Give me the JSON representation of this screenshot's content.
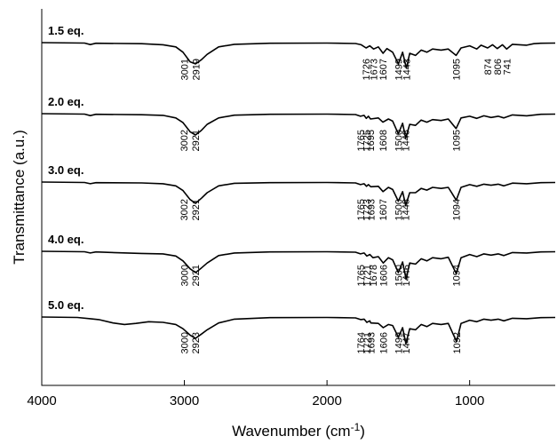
{
  "chart_data": {
    "type": "line",
    "title": "",
    "xlabel": "Wavenumber (cm",
    "xlabel_sup": "-1",
    "xlabel_end": ")",
    "ylabel": "Transmittance (a.u.)",
    "xlim": [
      4000,
      400
    ],
    "x_reversed": true,
    "xticks": [
      4000,
      3000,
      2000,
      1000
    ],
    "xtick_labels": [
      "4000",
      "3000",
      "2000",
      "1000"
    ],
    "yticks_shown": false,
    "grid": false,
    "legend": "none",
    "series": [
      {
        "name": "1.5 eq.",
        "peaks": [
          "3001",
          "2919",
          "1726",
          "1673",
          "1607",
          "1499",
          "1443",
          "1095",
          "874",
          "806",
          "741"
        ],
        "spectrum": [
          [
            4000,
            0
          ],
          [
            3700,
            0.02
          ],
          [
            3660,
            0.09
          ],
          [
            3620,
            0.03
          ],
          [
            3300,
            0.05
          ],
          [
            3150,
            0.1
          ],
          [
            3060,
            0.2
          ],
          [
            3010,
            0.45
          ],
          [
            2960,
            0.9
          ],
          [
            2922,
            1.0
          ],
          [
            2880,
            0.8
          ],
          [
            2840,
            0.55
          ],
          [
            2760,
            0.2
          ],
          [
            2650,
            0.08
          ],
          [
            2400,
            0.03
          ],
          [
            2000,
            0.02
          ],
          [
            1800,
            0.04
          ],
          [
            1760,
            0.1
          ],
          [
            1726,
            0.25
          ],
          [
            1700,
            0.15
          ],
          [
            1673,
            0.3
          ],
          [
            1640,
            0.2
          ],
          [
            1607,
            0.5
          ],
          [
            1580,
            0.28
          ],
          [
            1540,
            0.45
          ],
          [
            1499,
            1.0
          ],
          [
            1470,
            0.45
          ],
          [
            1443,
            1.2
          ],
          [
            1420,
            0.5
          ],
          [
            1380,
            0.6
          ],
          [
            1340,
            0.35
          ],
          [
            1300,
            0.45
          ],
          [
            1260,
            0.3
          ],
          [
            1200,
            0.35
          ],
          [
            1150,
            0.3
          ],
          [
            1095,
            0.6
          ],
          [
            1060,
            0.25
          ],
          [
            1000,
            0.15
          ],
          [
            950,
            0.3
          ],
          [
            920,
            0.12
          ],
          [
            874,
            0.25
          ],
          [
            840,
            0.1
          ],
          [
            806,
            0.28
          ],
          [
            770,
            0.1
          ],
          [
            741,
            0.3
          ],
          [
            700,
            0.08
          ],
          [
            600,
            0.12
          ],
          [
            550,
            0.05
          ],
          [
            500,
            0.03
          ],
          [
            400,
            0.02
          ]
        ]
      },
      {
        "name": "2.0 eq.",
        "peaks": [
          "3002",
          "2921",
          "1765",
          "1725",
          "1695",
          "1608",
          "1500",
          "1448",
          "1095"
        ],
        "spectrum": [
          [
            4000,
            0
          ],
          [
            3700,
            0.02
          ],
          [
            3660,
            0.09
          ],
          [
            3620,
            0.03
          ],
          [
            3300,
            0.05
          ],
          [
            3150,
            0.08
          ],
          [
            3060,
            0.2
          ],
          [
            3010,
            0.42
          ],
          [
            2960,
            0.85
          ],
          [
            2922,
            1.0
          ],
          [
            2880,
            0.78
          ],
          [
            2840,
            0.5
          ],
          [
            2760,
            0.2
          ],
          [
            2650,
            0.07
          ],
          [
            2400,
            0.03
          ],
          [
            2000,
            0.02
          ],
          [
            1800,
            0.04
          ],
          [
            1765,
            0.12
          ],
          [
            1740,
            0.08
          ],
          [
            1725,
            0.22
          ],
          [
            1710,
            0.12
          ],
          [
            1695,
            0.25
          ],
          [
            1640,
            0.2
          ],
          [
            1608,
            0.4
          ],
          [
            1570,
            0.25
          ],
          [
            1540,
            0.35
          ],
          [
            1500,
            0.95
          ],
          [
            1470,
            0.45
          ],
          [
            1448,
            1.15
          ],
          [
            1420,
            0.5
          ],
          [
            1380,
            0.55
          ],
          [
            1340,
            0.3
          ],
          [
            1300,
            0.4
          ],
          [
            1260,
            0.28
          ],
          [
            1200,
            0.32
          ],
          [
            1150,
            0.25
          ],
          [
            1095,
            0.7
          ],
          [
            1060,
            0.2
          ],
          [
            1000,
            0.12
          ],
          [
            950,
            0.22
          ],
          [
            900,
            0.1
          ],
          [
            850,
            0.18
          ],
          [
            800,
            0.12
          ],
          [
            760,
            0.2
          ],
          [
            700,
            0.06
          ],
          [
            600,
            0.1
          ],
          [
            500,
            0.03
          ],
          [
            400,
            0.02
          ]
        ]
      },
      {
        "name": "3.0 eq.",
        "peaks": [
          "3002",
          "2921",
          "1765",
          "1723",
          "1693",
          "1607",
          "1500",
          "1448",
          "1094"
        ],
        "spectrum": [
          [
            4000,
            0
          ],
          [
            3700,
            0.02
          ],
          [
            3660,
            0.08
          ],
          [
            3620,
            0.03
          ],
          [
            3300,
            0.04
          ],
          [
            3150,
            0.08
          ],
          [
            3060,
            0.18
          ],
          [
            3010,
            0.4
          ],
          [
            2960,
            0.82
          ],
          [
            2922,
            1.0
          ],
          [
            2880,
            0.76
          ],
          [
            2840,
            0.5
          ],
          [
            2760,
            0.18
          ],
          [
            2650,
            0.06
          ],
          [
            2400,
            0.03
          ],
          [
            2000,
            0.02
          ],
          [
            1800,
            0.04
          ],
          [
            1765,
            0.12
          ],
          [
            1740,
            0.08
          ],
          [
            1723,
            0.2
          ],
          [
            1710,
            0.12
          ],
          [
            1693,
            0.22
          ],
          [
            1640,
            0.2
          ],
          [
            1607,
            0.45
          ],
          [
            1570,
            0.25
          ],
          [
            1540,
            0.35
          ],
          [
            1500,
            0.9
          ],
          [
            1470,
            0.45
          ],
          [
            1448,
            1.1
          ],
          [
            1420,
            0.5
          ],
          [
            1380,
            0.5
          ],
          [
            1340,
            0.3
          ],
          [
            1300,
            0.38
          ],
          [
            1260,
            0.25
          ],
          [
            1200,
            0.3
          ],
          [
            1150,
            0.25
          ],
          [
            1094,
            0.85
          ],
          [
            1060,
            0.25
          ],
          [
            1000,
            0.12
          ],
          [
            950,
            0.2
          ],
          [
            900,
            0.1
          ],
          [
            850,
            0.15
          ],
          [
            800,
            0.1
          ],
          [
            760,
            0.18
          ],
          [
            700,
            0.05
          ],
          [
            600,
            0.08
          ],
          [
            500,
            0.03
          ],
          [
            400,
            0.02
          ]
        ]
      },
      {
        "name": "4.0 eq.",
        "peaks": [
          "3000",
          "2921",
          "1765",
          "1721",
          "1678",
          "1606",
          "1500",
          "1446",
          "1094"
        ],
        "spectrum": [
          [
            4000,
            0
          ],
          [
            3700,
            0.02
          ],
          [
            3660,
            0.08
          ],
          [
            3620,
            0.03
          ],
          [
            3450,
            0.07
          ],
          [
            3300,
            0.1
          ],
          [
            3150,
            0.12
          ],
          [
            3060,
            0.22
          ],
          [
            3010,
            0.45
          ],
          [
            2960,
            0.82
          ],
          [
            2922,
            1.0
          ],
          [
            2880,
            0.78
          ],
          [
            2840,
            0.55
          ],
          [
            2760,
            0.2
          ],
          [
            2650,
            0.08
          ],
          [
            2400,
            0.03
          ],
          [
            2000,
            0.02
          ],
          [
            1800,
            0.04
          ],
          [
            1765,
            0.12
          ],
          [
            1740,
            0.08
          ],
          [
            1721,
            0.22
          ],
          [
            1700,
            0.15
          ],
          [
            1678,
            0.3
          ],
          [
            1640,
            0.25
          ],
          [
            1606,
            0.55
          ],
          [
            1570,
            0.3
          ],
          [
            1540,
            0.4
          ],
          [
            1500,
            1.0
          ],
          [
            1470,
            0.5
          ],
          [
            1446,
            1.3
          ],
          [
            1420,
            0.55
          ],
          [
            1380,
            0.6
          ],
          [
            1340,
            0.35
          ],
          [
            1300,
            0.45
          ],
          [
            1260,
            0.3
          ],
          [
            1200,
            0.35
          ],
          [
            1150,
            0.28
          ],
          [
            1094,
            1.05
          ],
          [
            1060,
            0.3
          ],
          [
            1000,
            0.15
          ],
          [
            950,
            0.25
          ],
          [
            900,
            0.12
          ],
          [
            850,
            0.18
          ],
          [
            800,
            0.12
          ],
          [
            760,
            0.2
          ],
          [
            700,
            0.06
          ],
          [
            600,
            0.08
          ],
          [
            500,
            0.03
          ],
          [
            400,
            0.02
          ]
        ]
      },
      {
        "name": "5.0 eq.",
        "peaks": [
          "3000",
          "2923",
          "1764",
          "1721",
          "1693",
          "1606",
          "1499",
          "1447",
          "1092"
        ],
        "spectrum": [
          [
            4000,
            0
          ],
          [
            3750,
            0.02
          ],
          [
            3660,
            0.08
          ],
          [
            3600,
            0.12
          ],
          [
            3500,
            0.28
          ],
          [
            3420,
            0.35
          ],
          [
            3340,
            0.3
          ],
          [
            3250,
            0.22
          ],
          [
            3150,
            0.25
          ],
          [
            3060,
            0.35
          ],
          [
            3010,
            0.55
          ],
          [
            2960,
            0.85
          ],
          [
            2922,
            1.0
          ],
          [
            2880,
            0.8
          ],
          [
            2840,
            0.6
          ],
          [
            2760,
            0.28
          ],
          [
            2650,
            0.1
          ],
          [
            2400,
            0.03
          ],
          [
            2000,
            0.02
          ],
          [
            1800,
            0.04
          ],
          [
            1764,
            0.12
          ],
          [
            1740,
            0.1
          ],
          [
            1721,
            0.25
          ],
          [
            1700,
            0.18
          ],
          [
            1693,
            0.28
          ],
          [
            1640,
            0.3
          ],
          [
            1606,
            0.5
          ],
          [
            1570,
            0.35
          ],
          [
            1540,
            0.4
          ],
          [
            1499,
            0.95
          ],
          [
            1470,
            0.5
          ],
          [
            1447,
            1.25
          ],
          [
            1420,
            0.55
          ],
          [
            1380,
            0.6
          ],
          [
            1340,
            0.35
          ],
          [
            1300,
            0.45
          ],
          [
            1260,
            0.3
          ],
          [
            1200,
            0.35
          ],
          [
            1150,
            0.3
          ],
          [
            1092,
            1.15
          ],
          [
            1060,
            0.3
          ],
          [
            1000,
            0.15
          ],
          [
            950,
            0.22
          ],
          [
            900,
            0.1
          ],
          [
            850,
            0.15
          ],
          [
            800,
            0.1
          ],
          [
            760,
            0.18
          ],
          [
            700,
            0.06
          ],
          [
            600,
            0.08
          ],
          [
            500,
            0.03
          ],
          [
            400,
            0.02
          ]
        ]
      }
    ]
  }
}
